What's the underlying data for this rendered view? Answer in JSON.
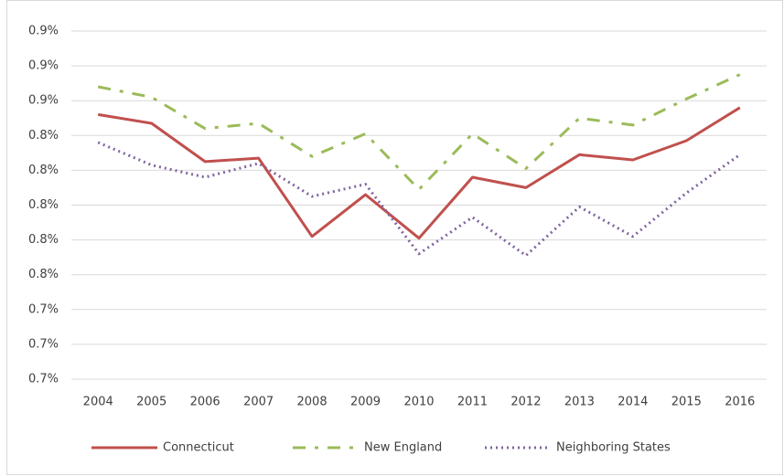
{
  "chart_data": {
    "type": "line",
    "categories": [
      "2004",
      "2005",
      "2006",
      "2007",
      "2008",
      "2009",
      "2010",
      "2011",
      "2012",
      "2013",
      "2014",
      "2015",
      "2016"
    ],
    "series": [
      {
        "name": "Connecticut",
        "color": "#c0504d",
        "dash": "solid",
        "values": [
          0.852,
          0.847,
          0.825,
          0.827,
          0.782,
          0.806,
          0.781,
          0.816,
          0.81,
          0.829,
          0.826,
          0.837,
          0.856
        ]
      },
      {
        "name": "New England",
        "color": "#9bbb59",
        "dash": "dashdot",
        "values": [
          0.868,
          0.862,
          0.844,
          0.847,
          0.828,
          0.841,
          0.809,
          0.841,
          0.821,
          0.85,
          0.846,
          0.861,
          0.875
        ]
      },
      {
        "name": "Neighboring States",
        "color": "#8064a2",
        "dash": "dot",
        "values": [
          0.836,
          0.823,
          0.816,
          0.824,
          0.805,
          0.812,
          0.772,
          0.793,
          0.771,
          0.799,
          0.782,
          0.807,
          0.829
        ]
      }
    ],
    "ylim": [
      0.7,
      0.9
    ],
    "yticks": [
      {
        "value": 0.7,
        "label": "0.7%"
      },
      {
        "value": 0.72,
        "label": "0.7%"
      },
      {
        "value": 0.74,
        "label": "0.7%"
      },
      {
        "value": 0.76,
        "label": "0.8%"
      },
      {
        "value": 0.78,
        "label": "0.8%"
      },
      {
        "value": 0.8,
        "label": "0.8%"
      },
      {
        "value": 0.82,
        "label": "0.8%"
      },
      {
        "value": 0.84,
        "label": "0.8%"
      },
      {
        "value": 0.86,
        "label": "0.9%"
      },
      {
        "value": 0.88,
        "label": "0.9%"
      },
      {
        "value": 0.9,
        "label": "0.9%"
      }
    ],
    "grid": true,
    "legend": "bottom"
  }
}
